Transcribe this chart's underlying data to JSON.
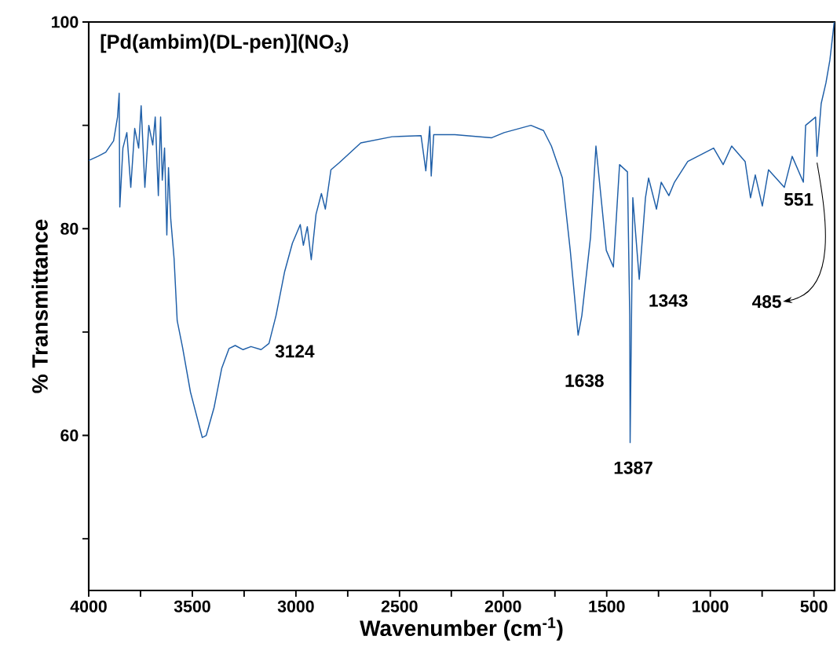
{
  "chart_data": {
    "type": "line",
    "title": "[Pd(ambim)(DL-pen)](NO$_{3}$)",
    "xlabel": "Wavenumber (cm$^{-1}$)",
    "ylabel": "% Transmittance",
    "color": "#1f5fa8",
    "x": [
      4000,
      3956,
      3918,
      3880,
      3861,
      3853,
      3850,
      3835,
      3816,
      3797,
      3778,
      3759,
      3747,
      3729,
      3710,
      3691,
      3679,
      3664,
      3653,
      3645,
      3634,
      3623,
      3615,
      3604,
      3588,
      3573,
      3547,
      3509,
      3452,
      3433,
      3395,
      3358,
      3323,
      3293,
      3255,
      3217,
      3168,
      3130,
      3096,
      3055,
      3017,
      2979,
      2964,
      2945,
      2926,
      2903,
      2877,
      2858,
      2831,
      2790,
      2687,
      2536,
      2396,
      2373,
      2354,
      2347,
      2335,
      2233,
      2055,
      1995,
      1866,
      1805,
      1767,
      1714,
      1676,
      1638,
      1620,
      1578,
      1552,
      1502,
      1468,
      1438,
      1400,
      1389,
      1387,
      1374,
      1343,
      1313,
      1298,
      1260,
      1237,
      1200,
      1173,
      1109,
      984,
      938,
      897,
      832,
      806,
      783,
      749,
      719,
      643,
      605,
      551,
      540,
      492,
      485,
      465,
      442,
      423,
      402
    ],
    "values": [
      86.6,
      87.0,
      87.4,
      88.5,
      90.8,
      93.1,
      82.1,
      87.8,
      89.3,
      84.0,
      89.7,
      87.8,
      91.9,
      84.0,
      90.0,
      88.1,
      90.8,
      83.2,
      90.8,
      84.7,
      87.8,
      79.4,
      85.9,
      80.9,
      77.1,
      71.1,
      68.5,
      64.2,
      59.8,
      60.0,
      62.7,
      66.5,
      68.4,
      68.7,
      68.3,
      68.6,
      68.3,
      68.9,
      71.6,
      75.8,
      78.6,
      80.4,
      78.4,
      80.2,
      77.0,
      81.4,
      83.4,
      81.9,
      85.7,
      86.4,
      88.3,
      88.9,
      89.0,
      85.6,
      89.9,
      85.1,
      89.1,
      89.1,
      88.8,
      89.3,
      90.0,
      89.5,
      88.0,
      84.9,
      77.9,
      69.7,
      71.6,
      79.2,
      88.0,
      77.9,
      76.3,
      86.2,
      85.5,
      71.6,
      59.3,
      83.0,
      75.1,
      83.0,
      84.9,
      81.9,
      84.5,
      83.2,
      84.5,
      86.5,
      87.8,
      86.2,
      88.0,
      86.5,
      83.0,
      85.2,
      82.2,
      85.7,
      84.0,
      87.0,
      84.5,
      90.0,
      90.8,
      87.0,
      92.1,
      94.1,
      96.3,
      100.0
    ],
    "xlim": [
      4000,
      400
    ],
    "ylim": [
      45,
      100
    ],
    "xticks": [
      4000,
      {
        "value": 3750,
        "label": null
      },
      3500,
      {
        "value": 3250,
        "label": null
      },
      3000,
      {
        "value": 2750,
        "label": null
      },
      2500,
      {
        "value": 2250,
        "label": null
      },
      2000,
      {
        "value": 1750,
        "label": null
      },
      1500,
      {
        "value": 1250,
        "label": null
      },
      1000,
      {
        "value": 750,
        "label": null
      },
      500
    ],
    "yticks": [
      {
        "value": 50,
        "label": null
      },
      60,
      {
        "value": 70,
        "label": null
      },
      80,
      {
        "value": 90,
        "label": null
      },
      100
    ],
    "annotations": [
      {
        "text": "3124",
        "x": 3130,
        "y": 68.9
      },
      {
        "text": "1638",
        "x": 1638,
        "y": 69.7
      },
      {
        "text": "1387",
        "x": 1387,
        "y": 59.3
      },
      {
        "text": "1343",
        "x": 1343,
        "y": 75.1
      },
      {
        "text": "551",
        "x": 551,
        "y": 84.5
      },
      {
        "text": "485",
        "x": 485,
        "y": 87.0
      }
    ]
  }
}
